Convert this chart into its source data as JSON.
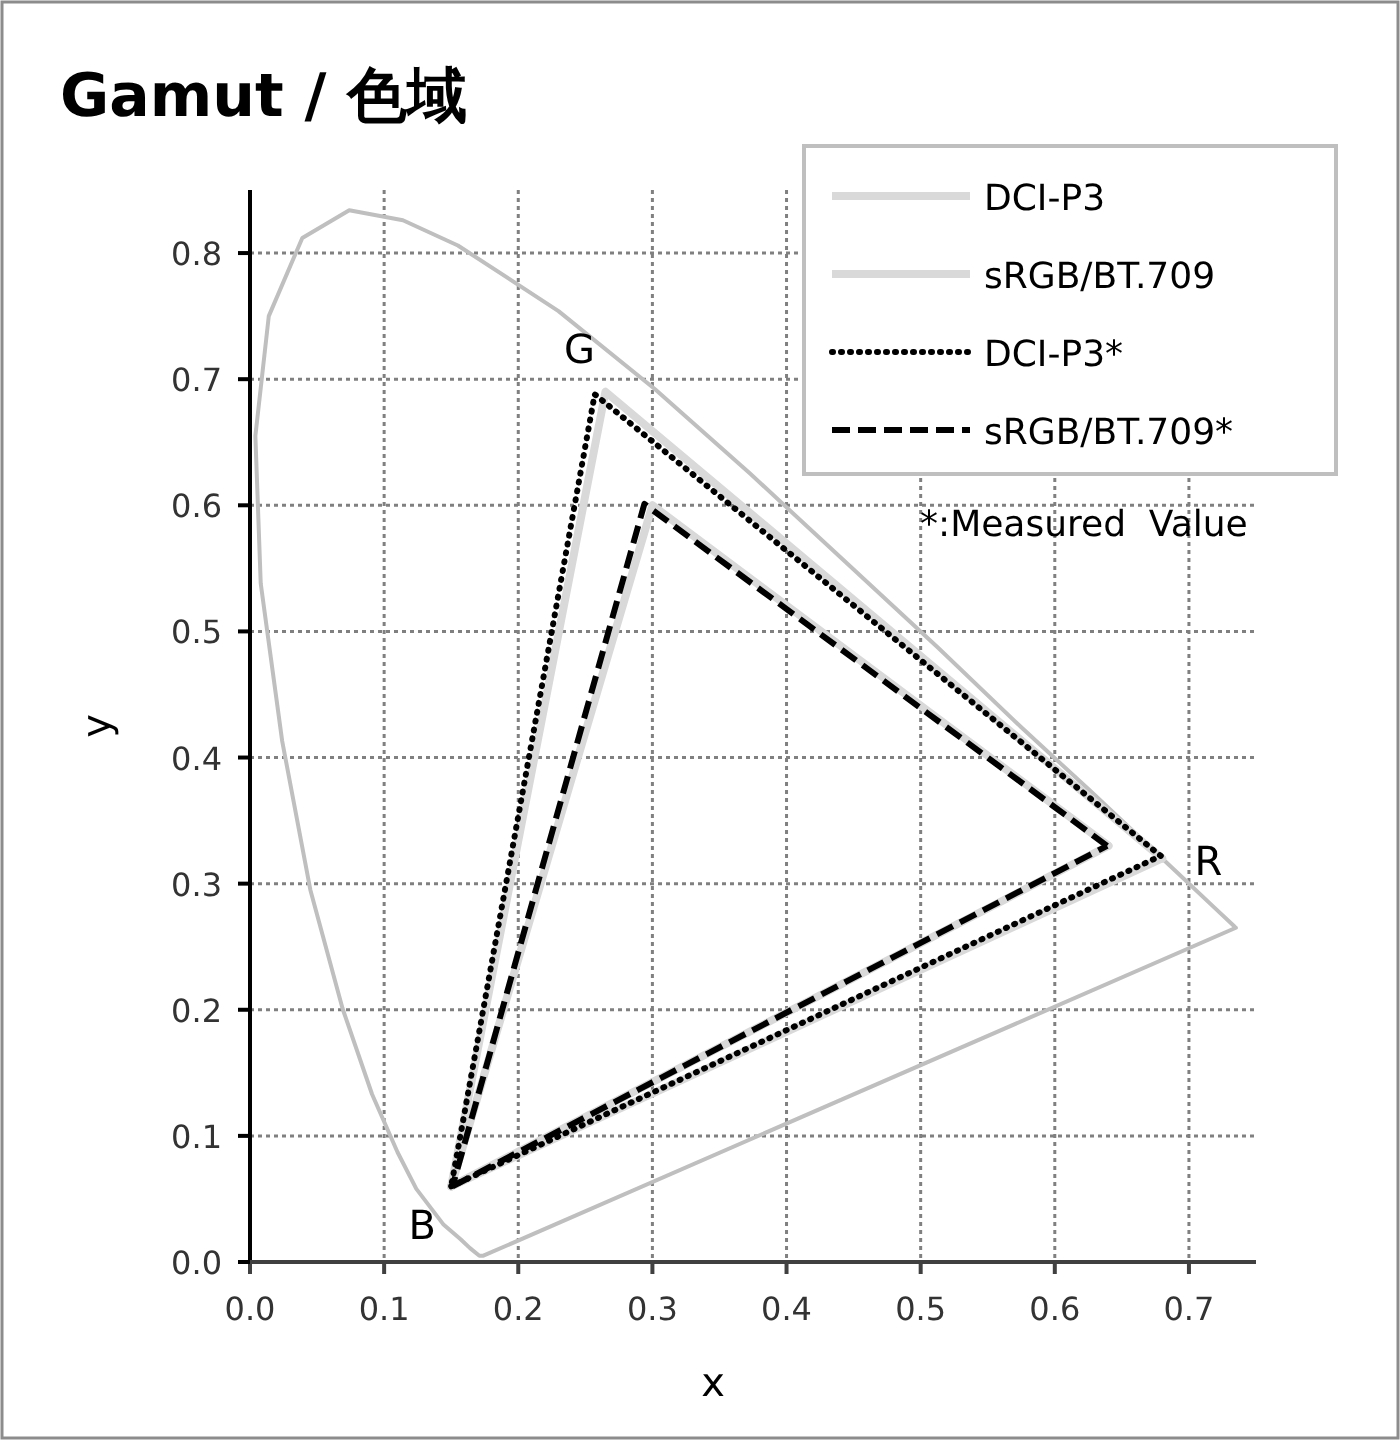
{
  "chart_data": {
    "type": "line",
    "title": "Gamut / 色域",
    "xlabel": "x",
    "ylabel": "y",
    "xlim": [
      0,
      0.75
    ],
    "ylim": [
      0,
      0.85
    ],
    "xticks": [
      {
        "value": 0,
        "label": "0.0"
      },
      0.1,
      0.2,
      0.3,
      0.4,
      0.5,
      0.6,
      0.7
    ],
    "yticks": [
      {
        "value": 0,
        "label": "0.0"
      },
      0.1,
      0.2,
      0.3,
      0.4,
      0.5,
      0.6,
      0.7,
      0.8
    ],
    "grid": true,
    "legend": "top right",
    "series": [
      {
        "color": "#bfbfbf",
        "line_style": "solid",
        "x": [
          0.735,
          0.174,
          0.171,
          0.164,
          0.157,
          0.144,
          0.124,
          0.11,
          0.091,
          0.069,
          0.045,
          0.024,
          0.008,
          0.004,
          0.014,
          0.039,
          0.074,
          0.114,
          0.155,
          0.23,
          0.302,
          0.373,
          0.444,
          0.513,
          0.575,
          0.627,
          0.666,
          0.692,
          0.719,
          0.734
        ],
        "values": [
          0.265,
          0.005,
          0.005,
          0.011,
          0.018,
          0.03,
          0.058,
          0.087,
          0.133,
          0.201,
          0.295,
          0.413,
          0.538,
          0.655,
          0.75,
          0.812,
          0.834,
          0.826,
          0.806,
          0.754,
          0.692,
          0.625,
          0.555,
          0.487,
          0.424,
          0.373,
          0.334,
          0.308,
          0.281,
          0.266
        ]
      },
      {
        "name": "DCI-P3",
        "color": "#d9d9d9",
        "line_style": "solid",
        "x": [
          0.68,
          0.265,
          0.15
        ],
        "values": [
          0.32,
          0.69,
          0.06
        ]
      },
      {
        "color": "#d9d9d9",
        "line_style": "solid",
        "x": [
          0.15,
          0.68
        ],
        "values": [
          0.06,
          0.32
        ]
      },
      {
        "name": "sRGB/BT.709",
        "color": "#d9d9d9",
        "line_style": "solid",
        "x": [
          0.64,
          0.3,
          0.15
        ],
        "values": [
          0.33,
          0.6,
          0.06
        ]
      },
      {
        "color": "#d9d9d9",
        "line_style": "solid",
        "x": [
          0.15,
          0.64
        ],
        "values": [
          0.06,
          0.33
        ]
      },
      {
        "name": "DCI-P3*",
        "color": "#000000",
        "line_style": "dotted",
        "x": [
          0.679,
          0.257,
          0.15
        ],
        "values": [
          0.322,
          0.688,
          0.06
        ]
      },
      {
        "color": "#000000",
        "line_style": "dotted",
        "x": [
          0.15,
          0.679
        ],
        "values": [
          0.06,
          0.322
        ]
      },
      {
        "name": "sRGB/BT.709*",
        "color": "#000000",
        "line_style": "dashed",
        "x": [
          0.639,
          0.294,
          0.151
        ],
        "values": [
          0.33,
          0.601,
          0.06
        ]
      },
      {
        "color": "#000000",
        "line_style": "dashed",
        "x": [
          0.151,
          0.639
        ],
        "values": [
          0.06,
          0.33
        ]
      }
    ],
    "annotations": [
      {
        "text": "G",
        "x": 0.257,
        "y": 0.688
      },
      {
        "text": "R",
        "x": 0.679,
        "y": 0.322
      },
      {
        "text": "B",
        "x": 0.15,
        "y": 0.06
      },
      "*:Measured  Value"
    ]
  }
}
